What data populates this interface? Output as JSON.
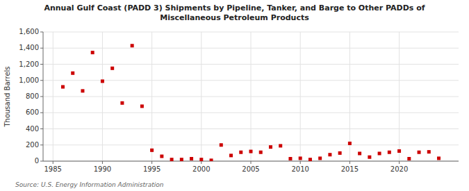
{
  "chart_data": {
    "type": "scatter",
    "title": "Annual Gulf Coast (PADD 3) Shipments by Pipeline, Tanker, and Barge to Other PADDs of\nMiscellaneous Petroleum Products",
    "y_label": "Thousand Barrels",
    "annotation": "Source: U.S. Energy Information Administration",
    "color": "#cc0000",
    "marker": "square",
    "grid": true,
    "x": [
      1986,
      1987,
      1988,
      1989,
      1990,
      1991,
      1992,
      1993,
      1994,
      1995,
      1996,
      1997,
      1998,
      1999,
      2000,
      2001,
      2002,
      2003,
      2004,
      2005,
      2006,
      2007,
      2008,
      2009,
      2010,
      2011,
      2012,
      2013,
      2014,
      2015,
      2016,
      2017,
      2018,
      2019,
      2020,
      2021,
      2022,
      2023,
      2024
    ],
    "values": [
      920,
      1090,
      870,
      1345,
      990,
      1150,
      720,
      1430,
      680,
      135,
      60,
      20,
      20,
      30,
      20,
      10,
      200,
      70,
      110,
      120,
      110,
      175,
      190,
      30,
      35,
      20,
      35,
      80,
      100,
      220,
      95,
      50,
      95,
      110,
      125,
      30,
      110,
      115,
      35
    ],
    "xlim": [
      1984,
      2026
    ],
    "xticks": [
      1985,
      1990,
      1995,
      2000,
      2005,
      2010,
      2015,
      2020
    ],
    "ylim": [
      0,
      1600
    ],
    "yticks": [
      0,
      200,
      400,
      600,
      800,
      {
        "value": 1000,
        "label": "1,000"
      },
      {
        "value": 1200,
        "label": "1,200"
      },
      {
        "value": 1400,
        "label": "1,400"
      },
      {
        "value": 1600,
        "label": "1,600"
      }
    ]
  }
}
